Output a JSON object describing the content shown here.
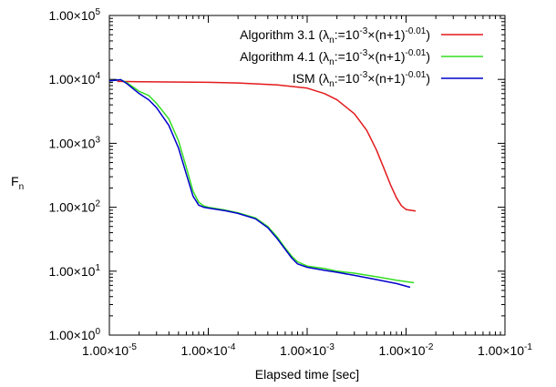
{
  "chart_data": {
    "type": "line",
    "xlabel": "Elapsed time [sec]",
    "ylabel": {
      "main": "F",
      "sub": "n"
    },
    "x_scale": "log",
    "y_scale": "log",
    "xlim": [
      1e-05,
      0.1
    ],
    "ylim": [
      1,
      100000
    ],
    "x_ticks": [
      {
        "value": 1e-05,
        "label": {
          "base": "1.00×10",
          "exp": "-5"
        }
      },
      {
        "value": 0.0001,
        "label": {
          "base": "1.00×10",
          "exp": "-4"
        }
      },
      {
        "value": 0.001,
        "label": {
          "base": "1.00×10",
          "exp": "-3"
        }
      },
      {
        "value": 0.01,
        "label": {
          "base": "1.00×10",
          "exp": "-2"
        }
      },
      {
        "value": 0.1,
        "label": {
          "base": "1.00×10",
          "exp": "-1"
        }
      }
    ],
    "y_ticks": [
      {
        "value": 1,
        "label": {
          "base": "1.00×10",
          "exp": "0"
        }
      },
      {
        "value": 10,
        "label": {
          "base": "1.00×10",
          "exp": "1"
        }
      },
      {
        "value": 100,
        "label": {
          "base": "1.00×10",
          "exp": "2"
        }
      },
      {
        "value": 1000,
        "label": {
          "base": "1.00×10",
          "exp": "3"
        }
      },
      {
        "value": 10000,
        "label": {
          "base": "1.00×10",
          "exp": "4"
        }
      },
      {
        "value": 100000,
        "label": {
          "base": "1.00×10",
          "exp": "5"
        }
      }
    ],
    "grid": false,
    "legend_position": "top-right",
    "series": [
      {
        "name": {
          "prefix": "Algorithm 3.1 (λ",
          "sub1": "n",
          "mid": ":=10",
          "sup1": "-3",
          "mid2": "×(n+1)",
          "sup2": "-0.01",
          "suffix": ")"
        },
        "color": "#e31a1c",
        "x": [
          1.2e-05,
          2e-05,
          5e-05,
          0.0001,
          0.0002,
          0.0005,
          0.001,
          0.0015,
          0.002,
          0.003,
          0.004,
          0.005,
          0.006,
          0.007,
          0.008,
          0.009,
          0.01,
          0.0125
        ],
        "y": [
          9300,
          9200,
          9100,
          9000,
          8800,
          8200,
          7300,
          6000,
          4800,
          2900,
          1600,
          800,
          400,
          220,
          140,
          105,
          92,
          87
        ]
      },
      {
        "name": {
          "prefix": "Algorithm 4.1 (λ",
          "sub1": "n",
          "mid": ":=10",
          "sup1": "-3",
          "mid2": "×(n+1)",
          "sup2": "-0.01",
          "suffix": ")"
        },
        "color": "#33dd22",
        "x": [
          1e-05,
          1.3e-05,
          1.5e-05,
          2e-05,
          2.5e-05,
          3e-05,
          4e-05,
          5e-05,
          6e-05,
          7e-05,
          8e-05,
          9e-05,
          0.0001,
          0.00015,
          0.0002,
          0.0003,
          0.0004,
          0.0005,
          0.0006,
          0.0007,
          0.0008,
          0.001,
          0.0015,
          0.002,
          0.003,
          0.005,
          0.008,
          0.012
        ],
        "y": [
          9500,
          9900,
          8900,
          6500,
          5600,
          4200,
          2400,
          1100,
          420,
          180,
          120,
          105,
          100,
          90,
          82,
          68,
          50,
          34,
          23,
          17,
          14,
          12,
          11,
          10,
          9.3,
          8.2,
          7.2,
          6.6
        ]
      },
      {
        "name": {
          "prefix": "ISM (λ",
          "sub1": "n",
          "mid": ":=10",
          "sup1": "-3",
          "mid2": "×(n+1)",
          "sup2": "-0.01",
          "suffix": ")"
        },
        "color": "#0000cc",
        "x": [
          1e-05,
          1.3e-05,
          1.5e-05,
          2e-05,
          2.5e-05,
          3e-05,
          4e-05,
          5e-05,
          6e-05,
          7e-05,
          8e-05,
          9e-05,
          0.0001,
          0.00015,
          0.0002,
          0.0003,
          0.0004,
          0.0005,
          0.0006,
          0.0007,
          0.0008,
          0.001,
          0.0015,
          0.002,
          0.003,
          0.005,
          0.008,
          0.011
        ],
        "y": [
          9500,
          9900,
          8600,
          6000,
          4800,
          3600,
          1900,
          850,
          330,
          150,
          108,
          100,
          97,
          88,
          80,
          66,
          48,
          32,
          22,
          16,
          13,
          11.5,
          10.3,
          9.6,
          8.6,
          7.4,
          6.4,
          5.6
        ]
      }
    ]
  }
}
